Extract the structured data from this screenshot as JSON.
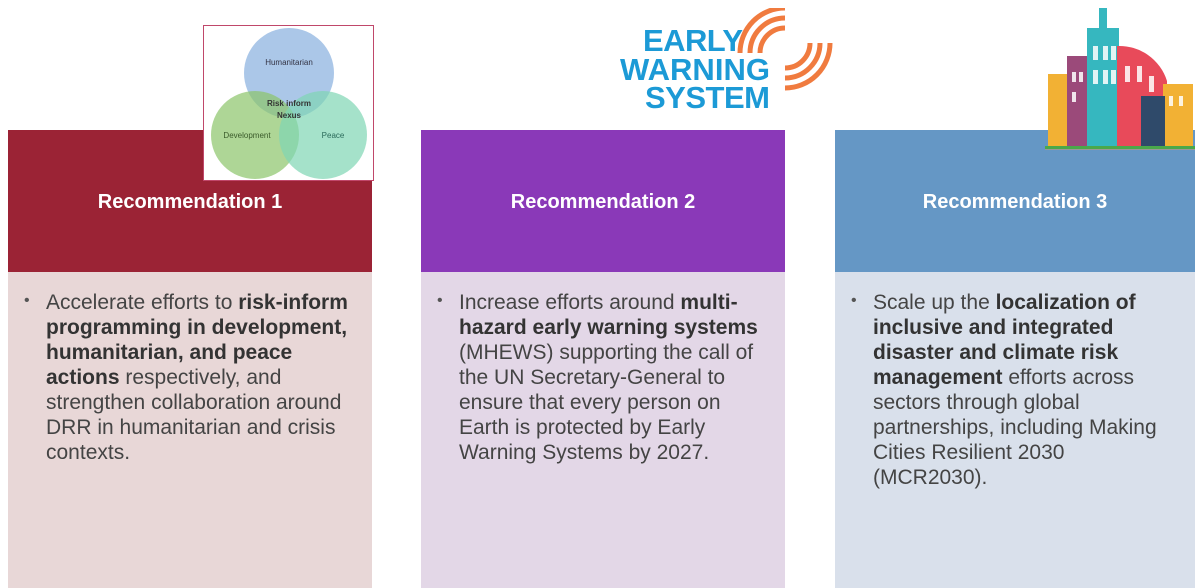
{
  "venn": {
    "top": "Humanitarian",
    "center_line1": "Risk inform",
    "center_line2": "Nexus",
    "left": "Development",
    "right": "Peace"
  },
  "logo": {
    "line1": "EARLY",
    "line2": "WARNING",
    "line3": "SYSTEM"
  },
  "cards": [
    {
      "title": "Recommendation 1",
      "bullet": [
        {
          "text": "Accelerate efforts to ",
          "bold": false
        },
        {
          "text": "risk-inform programming in development, humanitarian, and peace actions",
          "bold": true
        },
        {
          "text": " respectively, and strengthen collaboration around DRR in humanitarian and crisis contexts.",
          "bold": false
        }
      ]
    },
    {
      "title": "Recommendation 2",
      "bullet": [
        {
          "text": "Increase efforts around ",
          "bold": false
        },
        {
          "text": "multi-hazard early warning systems",
          "bold": true
        },
        {
          "text": " (MHEWS) supporting the call of the UN Secretary-General to ensure that every person on Earth is protected by Early Warning Systems by 2027.",
          "bold": false
        }
      ]
    },
    {
      "title": "Recommendation 3",
      "bullet": [
        {
          "text": "Scale up the ",
          "bold": false
        },
        {
          "text": "localization of inclusive and integrated disaster and climate risk management",
          "bold": true
        },
        {
          "text": " efforts across sectors through global partnerships, including Making Cities Resilient 2030 (MCR2030).",
          "bold": false
        }
      ]
    }
  ]
}
